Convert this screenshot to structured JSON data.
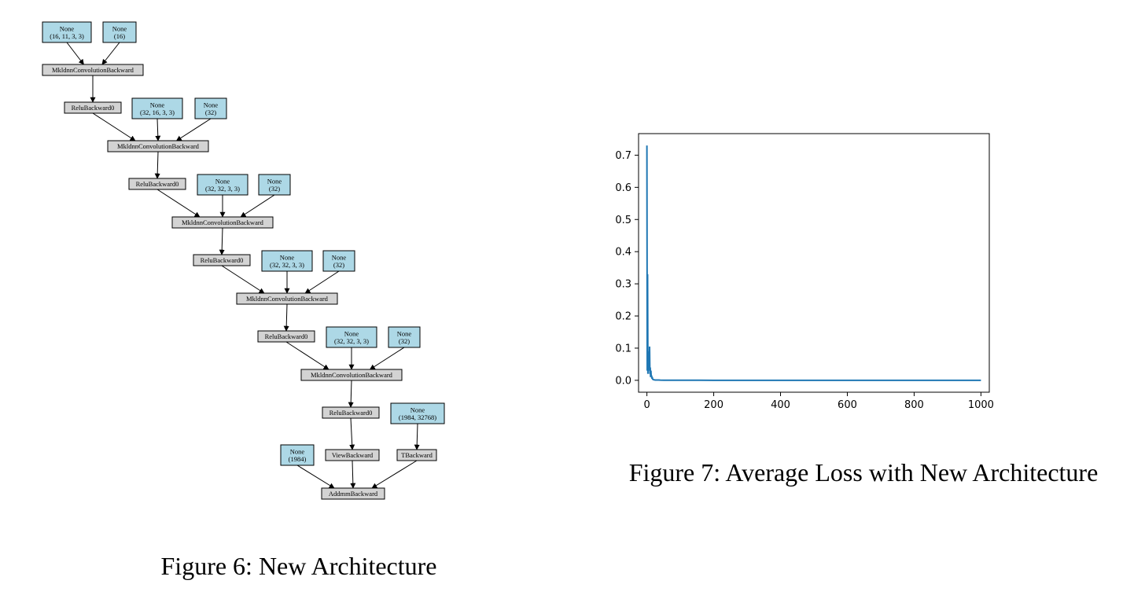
{
  "figure6": {
    "caption": "Figure 6: New Architecture",
    "nodes": [
      {
        "id": "p1",
        "kind": "param",
        "lines": [
          "None",
          "(16, 11, 3, 3)"
        ]
      },
      {
        "id": "p2",
        "kind": "param",
        "lines": [
          "None",
          "(16)"
        ]
      },
      {
        "id": "conv1",
        "kind": "op",
        "lines": [
          "MkldnnConvolutionBackward"
        ]
      },
      {
        "id": "relu1",
        "kind": "op",
        "lines": [
          "ReluBackward0"
        ]
      },
      {
        "id": "p3",
        "kind": "param",
        "lines": [
          "None",
          "(32, 16, 3, 3)"
        ]
      },
      {
        "id": "p4",
        "kind": "param",
        "lines": [
          "None",
          "(32)"
        ]
      },
      {
        "id": "conv2",
        "kind": "op",
        "lines": [
          "MkldnnConvolutionBackward"
        ]
      },
      {
        "id": "relu2",
        "kind": "op",
        "lines": [
          "ReluBackward0"
        ]
      },
      {
        "id": "p5",
        "kind": "param",
        "lines": [
          "None",
          "(32, 32, 3, 3)"
        ]
      },
      {
        "id": "p6",
        "kind": "param",
        "lines": [
          "None",
          "(32)"
        ]
      },
      {
        "id": "conv3",
        "kind": "op",
        "lines": [
          "MkldnnConvolutionBackward"
        ]
      },
      {
        "id": "relu3",
        "kind": "op",
        "lines": [
          "ReluBackward0"
        ]
      },
      {
        "id": "p7",
        "kind": "param",
        "lines": [
          "None",
          "(32, 32, 3, 3)"
        ]
      },
      {
        "id": "p8",
        "kind": "param",
        "lines": [
          "None",
          "(32)"
        ]
      },
      {
        "id": "conv4",
        "kind": "op",
        "lines": [
          "MkldnnConvolutionBackward"
        ]
      },
      {
        "id": "relu4",
        "kind": "op",
        "lines": [
          "ReluBackward0"
        ]
      },
      {
        "id": "p9",
        "kind": "param",
        "lines": [
          "None",
          "(32, 32, 3, 3)"
        ]
      },
      {
        "id": "p10",
        "kind": "param",
        "lines": [
          "None",
          "(32)"
        ]
      },
      {
        "id": "conv5",
        "kind": "op",
        "lines": [
          "MkldnnConvolutionBackward"
        ]
      },
      {
        "id": "relu5",
        "kind": "op",
        "lines": [
          "ReluBackward0"
        ]
      },
      {
        "id": "p11",
        "kind": "param",
        "lines": [
          "None",
          "(1984, 32768)"
        ]
      },
      {
        "id": "view",
        "kind": "op",
        "lines": [
          "ViewBackward"
        ]
      },
      {
        "id": "t",
        "kind": "op",
        "lines": [
          "TBackward"
        ]
      },
      {
        "id": "p12",
        "kind": "param",
        "lines": [
          "None",
          "(1984)"
        ]
      },
      {
        "id": "addmm",
        "kind": "op",
        "lines": [
          "AddmmBackward"
        ]
      }
    ],
    "edges": [
      [
        "p1",
        "conv1"
      ],
      [
        "p2",
        "conv1"
      ],
      [
        "conv1",
        "relu1"
      ],
      [
        "relu1",
        "conv2"
      ],
      [
        "p3",
        "conv2"
      ],
      [
        "p4",
        "conv2"
      ],
      [
        "conv2",
        "relu2"
      ],
      [
        "relu2",
        "conv3"
      ],
      [
        "p5",
        "conv3"
      ],
      [
        "p6",
        "conv3"
      ],
      [
        "conv3",
        "relu3"
      ],
      [
        "relu3",
        "conv4"
      ],
      [
        "p7",
        "conv4"
      ],
      [
        "p8",
        "conv4"
      ],
      [
        "conv4",
        "relu4"
      ],
      [
        "relu4",
        "conv5"
      ],
      [
        "p9",
        "conv5"
      ],
      [
        "p10",
        "conv5"
      ],
      [
        "conv5",
        "relu5"
      ],
      [
        "relu5",
        "view"
      ],
      [
        "p11",
        "t"
      ],
      [
        "p12",
        "addmm"
      ],
      [
        "view",
        "addmm"
      ],
      [
        "t",
        "addmm"
      ]
    ]
  },
  "figure7": {
    "caption": "Figure 7: Average Loss with New Architecture",
    "chart_data": {
      "type": "line",
      "title": "",
      "xlabel": "",
      "ylabel": "",
      "xlim": [
        -25,
        1025
      ],
      "ylim": [
        -0.037,
        0.767
      ],
      "xticks": [
        0,
        200,
        400,
        600,
        800,
        1000
      ],
      "xtick_labels": [
        "0",
        "200",
        "400",
        "600",
        "800",
        "1000"
      ],
      "yticks": [
        0.0,
        0.1,
        0.2,
        0.3,
        0.4,
        0.5,
        0.6,
        0.7
      ],
      "ytick_labels": [
        "0.0",
        "0.1",
        "0.2",
        "0.3",
        "0.4",
        "0.5",
        "0.6",
        "0.7"
      ],
      "grid": false,
      "color": "#1f77b4",
      "series": [
        {
          "x": [
            0,
            1,
            2,
            3,
            4,
            5,
            6,
            7,
            8,
            9,
            10,
            11,
            12,
            13,
            14,
            15,
            16,
            17,
            18,
            20,
            22,
            25,
            30,
            35,
            40,
            50,
            100,
            200,
            400,
            600,
            800,
            1000
          ],
          "y": [
            0.73,
            0.03,
            0.33,
            0.02,
            0.07,
            0.03,
            0.09,
            0.04,
            0.105,
            0.02,
            0.04,
            0.01,
            0.03,
            0.01,
            0.015,
            0.005,
            0.01,
            0.004,
            0.003,
            0.002,
            0.0015,
            0.001,
            0.001,
            0.0008,
            0.0005,
            0.0004,
            0.0002,
            0.0001,
            0.0001,
            0.0001,
            0.0001,
            0.0001
          ]
        }
      ]
    }
  }
}
